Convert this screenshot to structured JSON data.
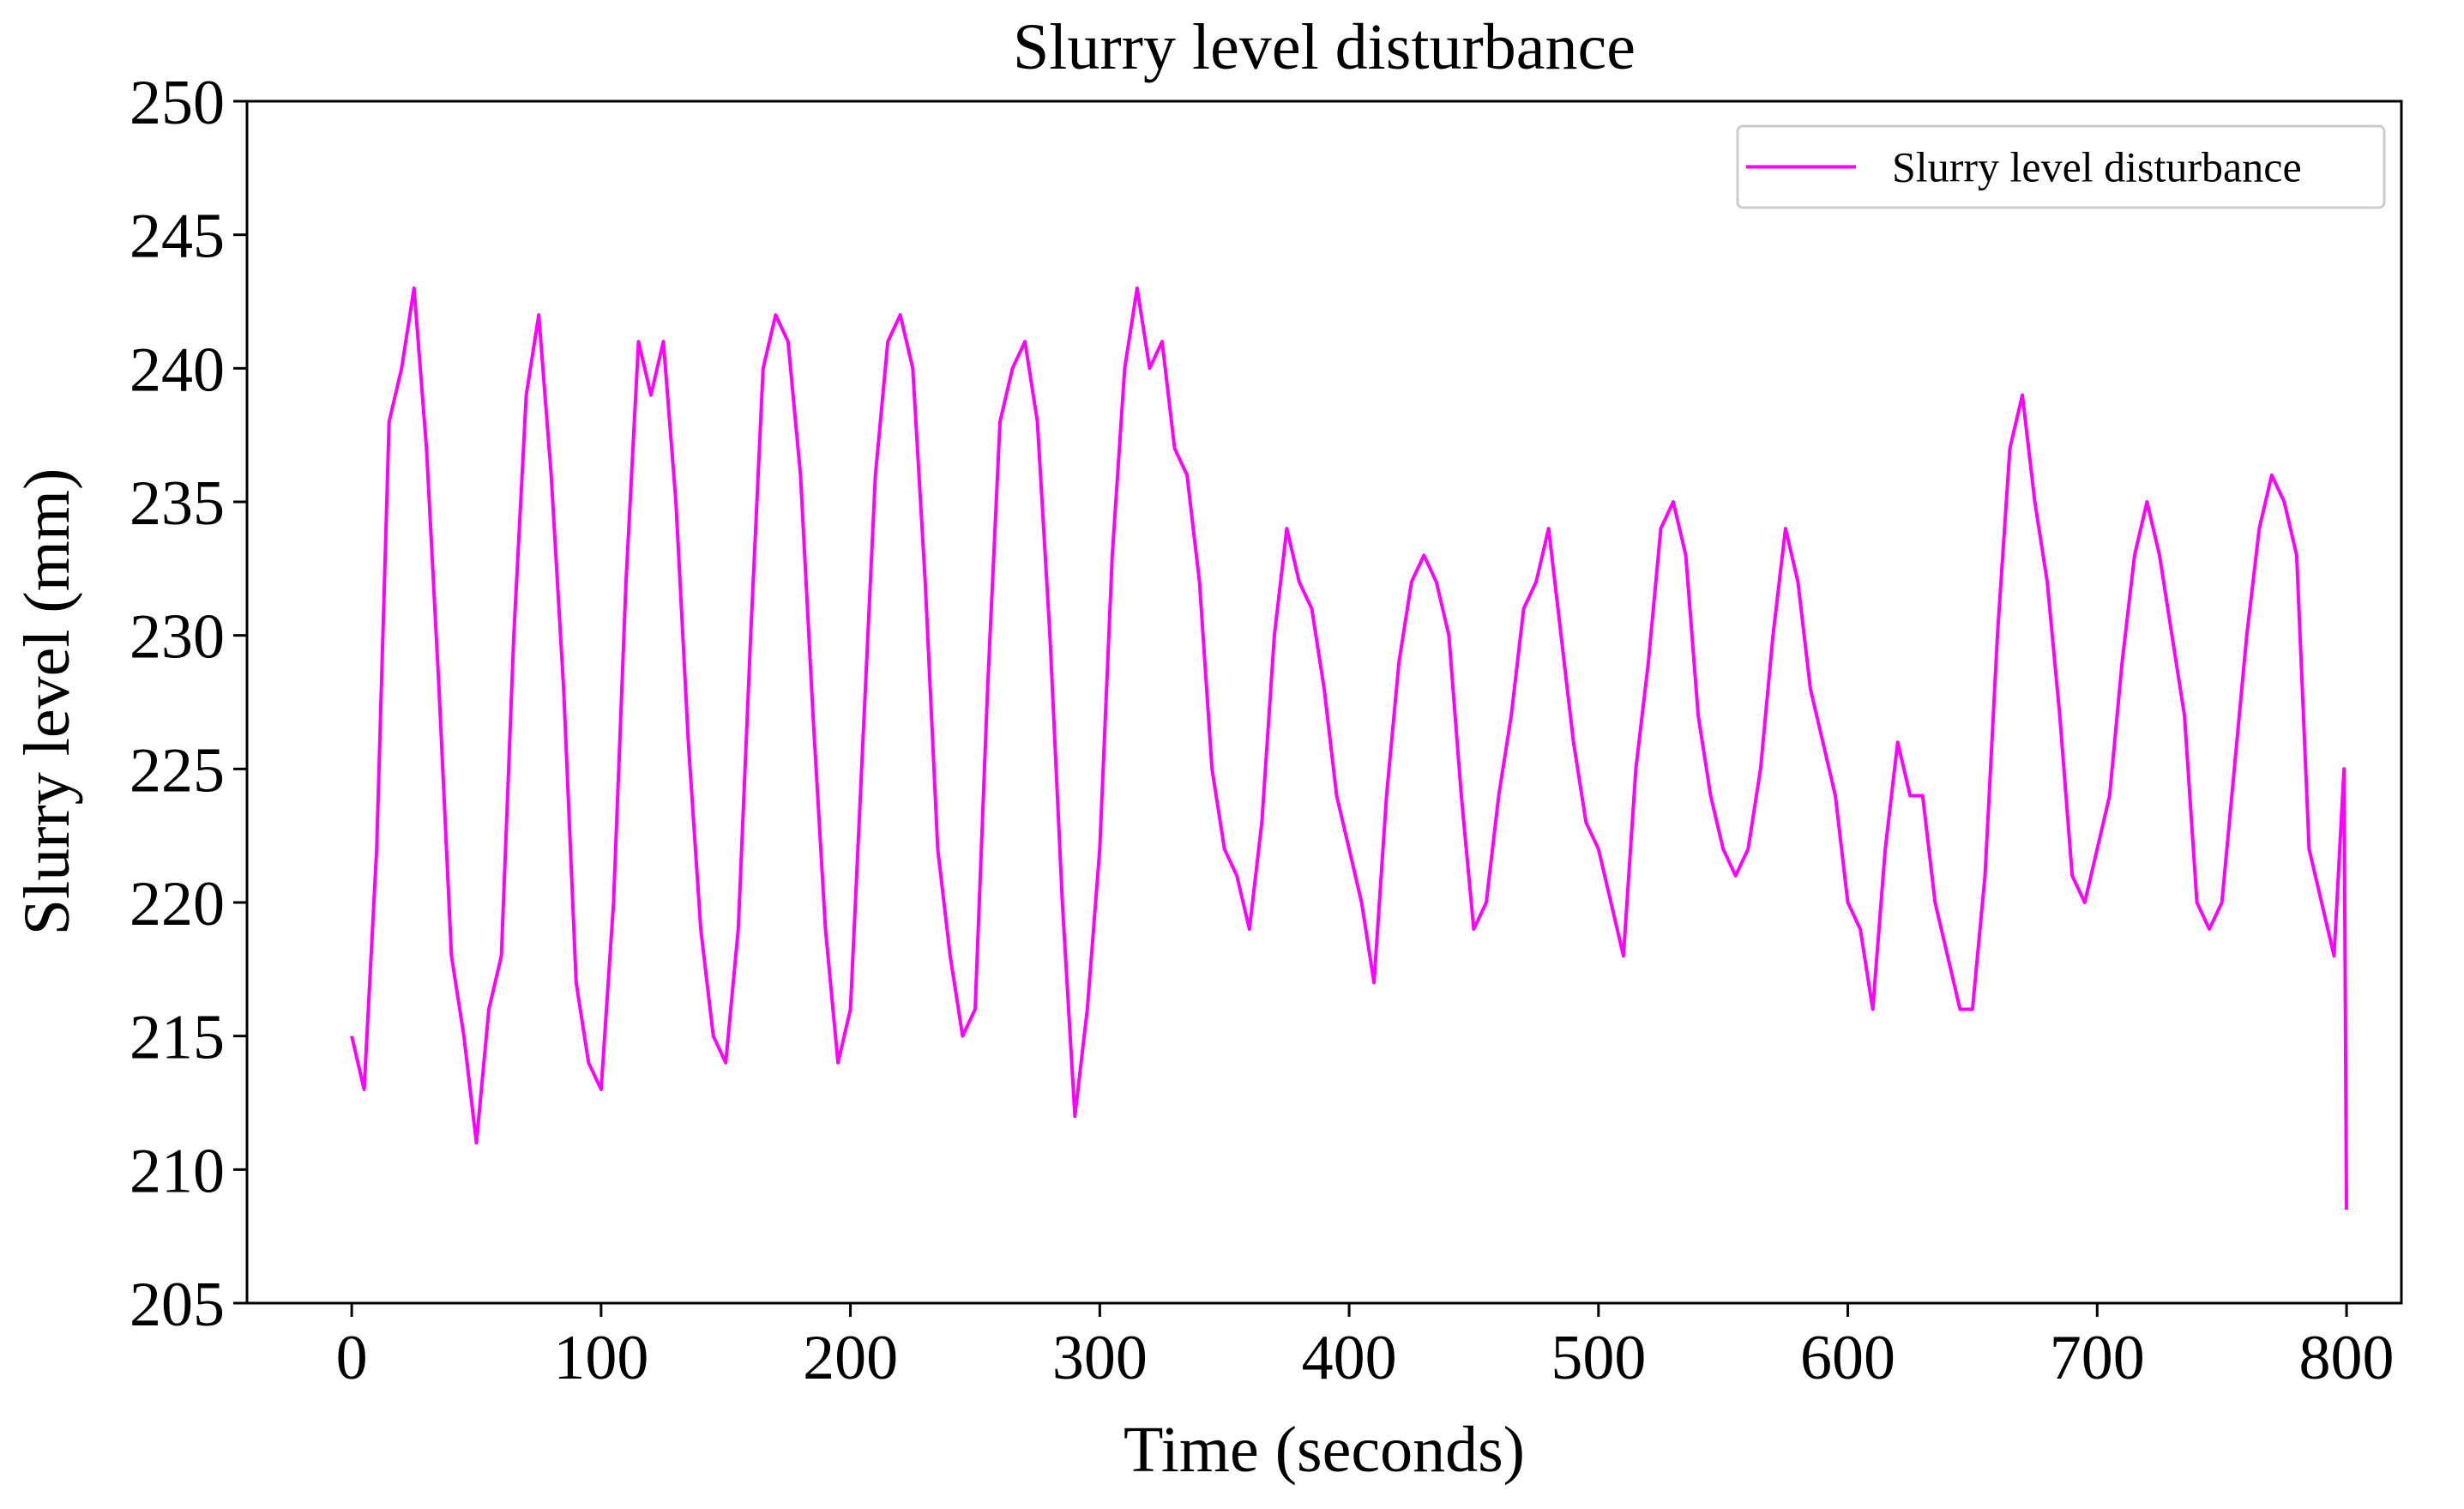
{
  "chart_data": {
    "type": "line",
    "title": "Slurry level disturbance",
    "xlabel": "Time (seconds)",
    "ylabel": "Slurry level (mm)",
    "x": [
      0,
      5,
      10,
      15,
      20,
      25,
      30,
      35,
      40,
      45,
      50,
      55,
      60,
      65,
      70,
      75,
      80,
      85,
      90,
      95,
      100,
      105,
      110,
      115,
      120,
      125,
      130,
      135,
      140,
      145,
      150,
      155,
      160,
      165,
      170,
      175,
      180,
      185,
      190,
      195,
      200,
      205,
      210,
      215,
      220,
      225,
      230,
      235,
      240,
      245,
      250,
      255,
      260,
      265,
      270,
      275,
      280,
      285,
      290,
      295,
      300,
      305,
      310,
      315,
      320,
      325,
      330,
      335,
      340,
      345,
      350,
      355,
      360,
      365,
      370,
      375,
      380,
      385,
      390,
      395,
      400,
      405,
      410,
      415,
      420,
      425,
      430,
      435,
      440,
      445,
      450,
      455,
      460,
      465,
      470,
      475,
      480,
      485,
      490,
      495,
      500,
      505,
      510,
      515,
      520,
      525,
      530,
      535,
      540,
      545,
      550,
      555,
      560,
      565,
      570,
      575,
      580,
      585,
      590,
      595,
      600,
      605,
      610,
      615,
      620,
      625,
      630,
      635,
      640,
      645,
      650,
      655,
      660,
      665,
      670,
      675,
      680,
      685,
      690,
      695,
      700,
      705,
      710,
      715,
      720,
      725,
      730,
      735,
      740,
      745,
      750,
      755,
      760,
      765,
      770,
      775,
      780,
      785,
      790,
      795,
      799,
      800
    ],
    "series": [
      {
        "name": "Slurry level disturbance",
        "color": "#ff00ff",
        "values": [
          215,
          213,
          222,
          238,
          240,
          243,
          237,
          228,
          218,
          215,
          211,
          216,
          218,
          230,
          239,
          242,
          236,
          228,
          217,
          214,
          213,
          220,
          232,
          241,
          239,
          241,
          235,
          226,
          219,
          215,
          214,
          219,
          230,
          240,
          242,
          241,
          236,
          227,
          219,
          214,
          216,
          226,
          236,
          241,
          242,
          240,
          232,
          222,
          218,
          215,
          216,
          228,
          238,
          240,
          241,
          238,
          230,
          220,
          212,
          216,
          222,
          233,
          240,
          243,
          240,
          241,
          237,
          236,
          232,
          225,
          222,
          221,
          219,
          223,
          230,
          234,
          232,
          231,
          228,
          224,
          222,
          220,
          217,
          224,
          229,
          232,
          233,
          232,
          230,
          224,
          219,
          220,
          224,
          227,
          231,
          232,
          234,
          230,
          226,
          223,
          222,
          220,
          218,
          225,
          229,
          234,
          235,
          233,
          227,
          224,
          222,
          221,
          222,
          225,
          230,
          234,
          232,
          228,
          226,
          224,
          220,
          219,
          216,
          222,
          226,
          224,
          224,
          220,
          218,
          216,
          216,
          221,
          230,
          237,
          239,
          235,
          232,
          227,
          221,
          220,
          222,
          224,
          229,
          233,
          235,
          233,
          230,
          227,
          220,
          219,
          220,
          225,
          230,
          234,
          236,
          235,
          233,
          222,
          220,
          218,
          225,
          208.5
        ]
      }
    ],
    "xlim": [
      -42,
      822
    ],
    "ylim": [
      205,
      250
    ],
    "xticks": [
      0,
      100,
      200,
      300,
      400,
      500,
      600,
      700,
      800
    ],
    "yticks": [
      205,
      210,
      215,
      220,
      225,
      230,
      235,
      240,
      245,
      250
    ],
    "legend": "upper right",
    "grid": false
  }
}
